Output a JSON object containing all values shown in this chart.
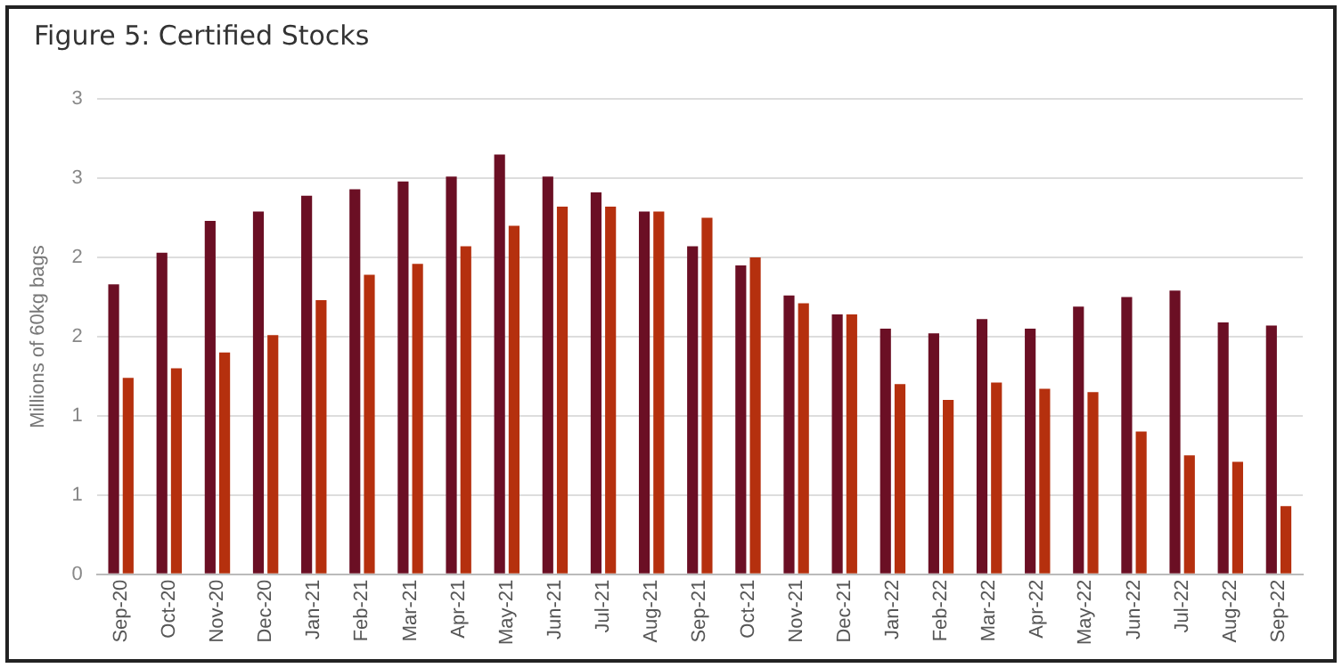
{
  "chart_data": {
    "type": "bar",
    "title": "Figure 5: Certified Stocks",
    "ylabel": "Millions of 60kg bags",
    "categories": [
      "Sep-20",
      "Oct-20",
      "Nov-20",
      "Dec-20",
      "Jan-21",
      "Feb-21",
      "Mar-21",
      "Apr-21",
      "May-21",
      "Jun-21",
      "Jul-21",
      "Aug-21",
      "Sep-21",
      "Oct-21",
      "Nov-21",
      "Dec-21",
      "Jan-22",
      "Feb-22",
      "Mar-22",
      "Apr-22",
      "May-22",
      "Jun-22",
      "Jul-22",
      "Aug-22",
      "Sep-22"
    ],
    "series": [
      {
        "color": "#6b0f24",
        "values": [
          1.83,
          2.03,
          2.23,
          2.29,
          2.39,
          2.43,
          2.48,
          2.51,
          2.65,
          2.51,
          2.41,
          2.29,
          2.07,
          1.95,
          1.76,
          1.64,
          1.55,
          1.52,
          1.61,
          1.55,
          1.69,
          1.75,
          1.79,
          1.59,
          1.57
        ]
      },
      {
        "color": "#b5300e",
        "values": [
          1.24,
          1.3,
          1.4,
          1.51,
          1.73,
          1.89,
          1.96,
          2.07,
          2.2,
          2.32,
          2.32,
          2.29,
          2.25,
          2.0,
          1.71,
          1.64,
          1.2,
          1.1,
          1.21,
          1.17,
          1.15,
          0.9,
          0.75,
          0.71,
          0.43
        ]
      }
    ],
    "ylim": [
      0,
      3
    ],
    "yticks": [
      0,
      {
        "value": 0.5,
        "label": "1"
      },
      1,
      {
        "value": 1.5,
        "label": "2"
      },
      2,
      {
        "value": 2.5,
        "label": "3"
      },
      3
    ],
    "grid": "y",
    "legend": false
  }
}
